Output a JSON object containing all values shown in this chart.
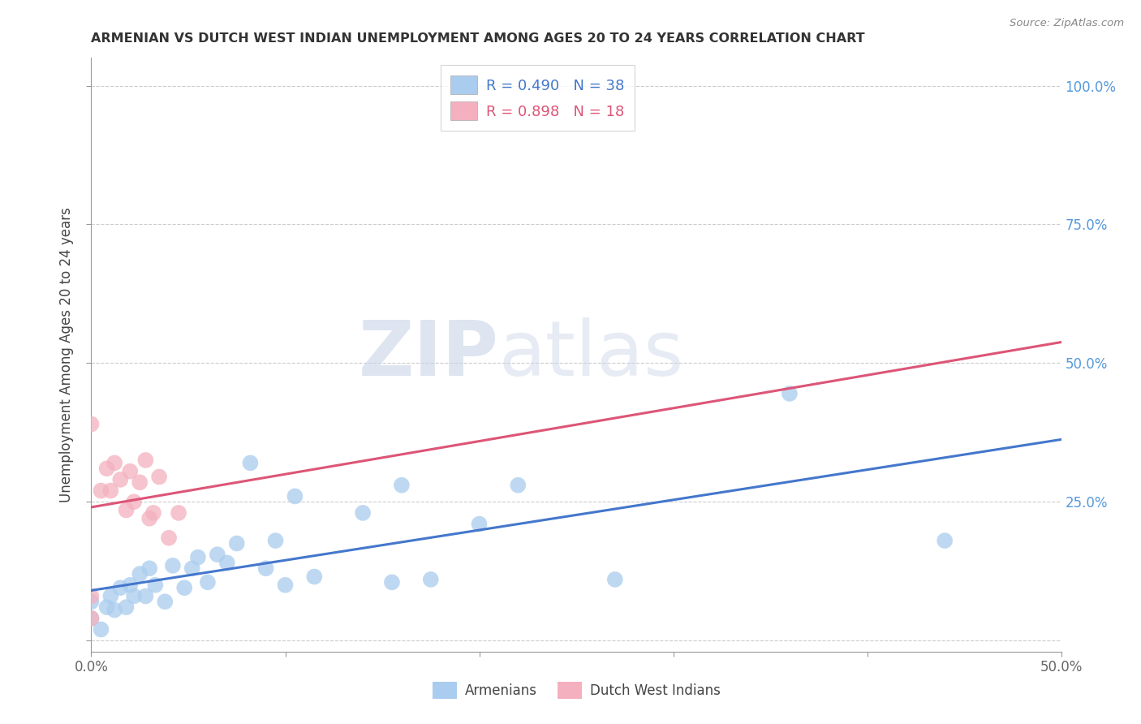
{
  "title": "ARMENIAN VS DUTCH WEST INDIAN UNEMPLOYMENT AMONG AGES 20 TO 24 YEARS CORRELATION CHART",
  "source": "Source: ZipAtlas.com",
  "ylabel": "Unemployment Among Ages 20 to 24 years",
  "xlim": [
    0.0,
    0.5
  ],
  "ylim": [
    -0.02,
    1.05
  ],
  "xticks": [
    0.0,
    0.1,
    0.2,
    0.3,
    0.4,
    0.5
  ],
  "xticklabels": [
    "0.0%",
    "",
    "",
    "",
    "",
    "50.0%"
  ],
  "yticks": [
    0.0,
    0.25,
    0.5,
    0.75,
    1.0
  ],
  "yticklabels": [
    "",
    "25.0%",
    "50.0%",
    "75.0%",
    "100.0%"
  ],
  "background_color": "#ffffff",
  "grid_color": "#cccccc",
  "armenian_color": "#aaccee",
  "dutch_color": "#f4b0be",
  "armenian_line_color": "#4477cc",
  "dutch_line_color": "#dd5577",
  "armenian_R": 0.49,
  "armenian_N": 38,
  "dutch_R": 0.898,
  "dutch_N": 18,
  "legend_label_armenian": "Armenians",
  "legend_label_dutch": "Dutch West Indians",
  "watermark_zip": "ZIP",
  "watermark_atlas": "atlas",
  "armenian_x": [
    0.0,
    0.0,
    0.005,
    0.008,
    0.01,
    0.012,
    0.015,
    0.018,
    0.02,
    0.022,
    0.025,
    0.028,
    0.03,
    0.033,
    0.038,
    0.042,
    0.048,
    0.052,
    0.055,
    0.06,
    0.065,
    0.07,
    0.075,
    0.082,
    0.09,
    0.095,
    0.1,
    0.105,
    0.115,
    0.14,
    0.155,
    0.16,
    0.175,
    0.2,
    0.22,
    0.27,
    0.36,
    0.44
  ],
  "armenian_y": [
    0.04,
    0.07,
    0.02,
    0.06,
    0.08,
    0.055,
    0.095,
    0.06,
    0.1,
    0.08,
    0.12,
    0.08,
    0.13,
    0.1,
    0.07,
    0.135,
    0.095,
    0.13,
    0.15,
    0.105,
    0.155,
    0.14,
    0.175,
    0.32,
    0.13,
    0.18,
    0.1,
    0.26,
    0.115,
    0.23,
    0.105,
    0.28,
    0.11,
    0.21,
    0.28,
    0.11,
    0.445,
    0.18
  ],
  "dutch_x": [
    0.0,
    0.0,
    0.0,
    0.005,
    0.008,
    0.01,
    0.012,
    0.015,
    0.018,
    0.02,
    0.022,
    0.025,
    0.028,
    0.03,
    0.032,
    0.035,
    0.04,
    0.045
  ],
  "dutch_y": [
    0.04,
    0.08,
    0.39,
    0.27,
    0.31,
    0.27,
    0.32,
    0.29,
    0.235,
    0.305,
    0.25,
    0.285,
    0.325,
    0.22,
    0.23,
    0.295,
    0.185,
    0.23
  ]
}
